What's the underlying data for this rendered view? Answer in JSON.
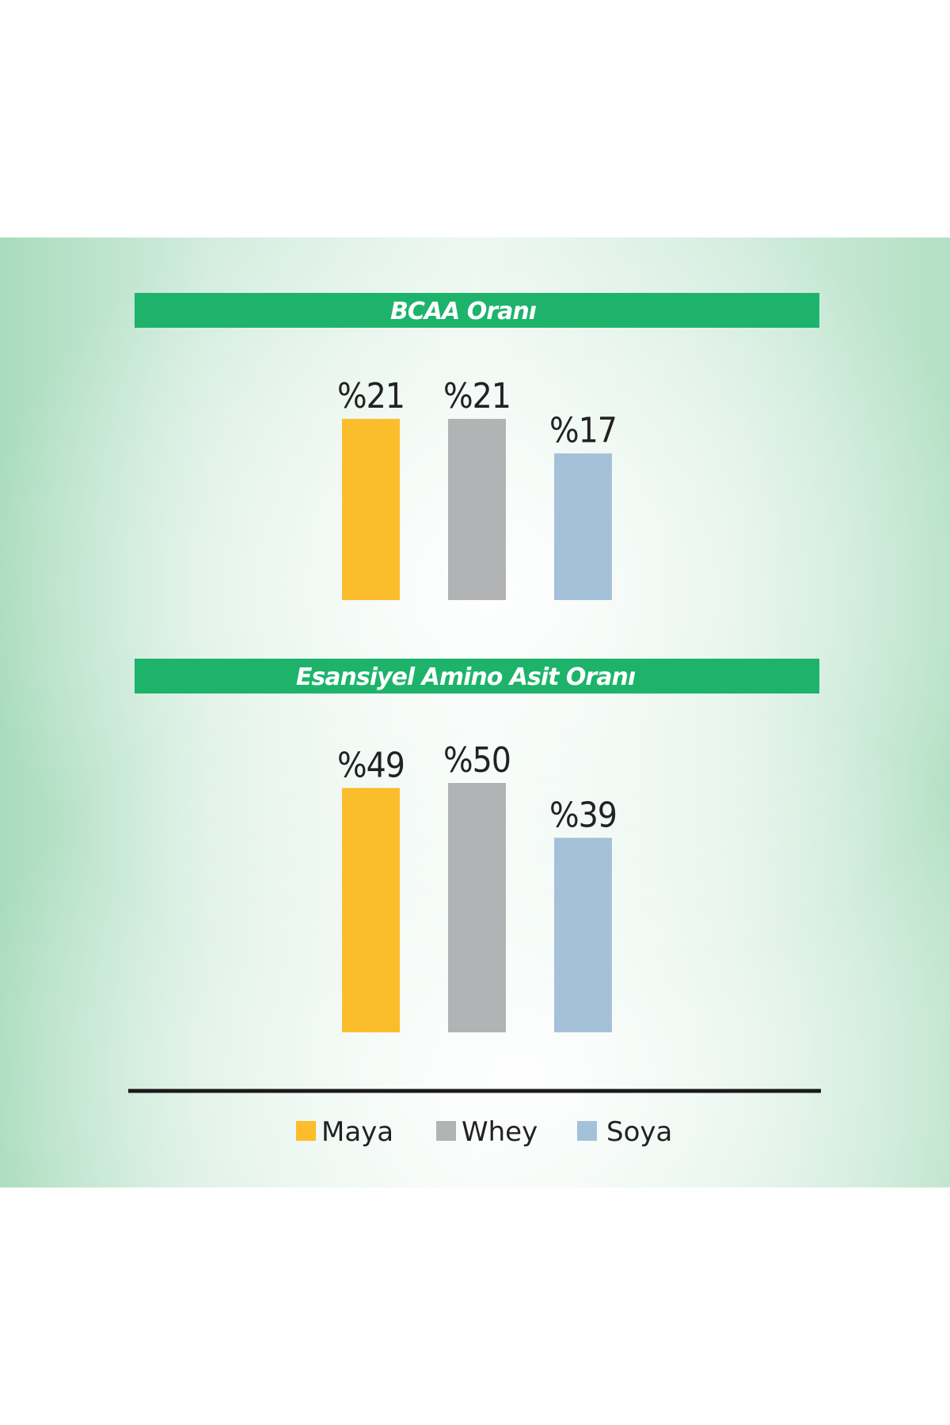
{
  "chart_data": [
    {
      "type": "bar",
      "title": "BCAA Oranı",
      "categories": [
        "Maya",
        "Whey",
        "Soya"
      ],
      "values": [
        21,
        21,
        17
      ],
      "value_labels": [
        "%21",
        "%21",
        "%17"
      ],
      "colors": [
        "#fbbd2b",
        "#b2b3b4",
        "#a5c1d9"
      ],
      "title_bar_color": "#1db36b"
    },
    {
      "type": "bar",
      "title": "Esansiyel Amino Asit Oranı",
      "categories": [
        "Maya",
        "Whey",
        "Soya"
      ],
      "values": [
        49,
        50,
        39
      ],
      "value_labels": [
        "%49",
        "%50",
        "%39"
      ],
      "colors": [
        "#fbbd2b",
        "#b2b3b4",
        "#a5c1d9"
      ],
      "title_bar_color": "#1db36b"
    }
  ],
  "legend": {
    "items": [
      {
        "label": "Maya",
        "color": "#fbbd2b"
      },
      {
        "label": "Whey",
        "color": "#b2b3b4"
      },
      {
        "label": "Soya",
        "color": "#a5c1d9"
      }
    ]
  }
}
